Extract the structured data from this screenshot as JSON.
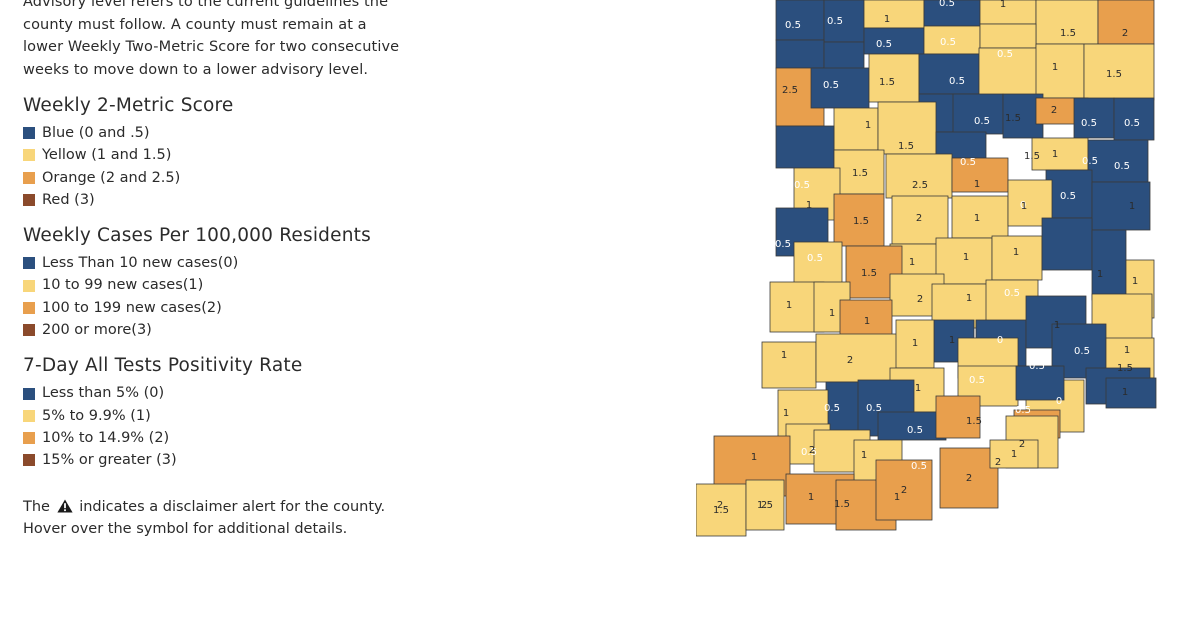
{
  "legend": {
    "intro_lines": [
      "Advisory level refers to the current guidelines the",
      "county must follow. A county must remain at a",
      "lower Weekly Two-Metric Score for two consecutive",
      "weeks to move down to a lower advisory level."
    ],
    "sections": [
      {
        "title": "Weekly 2-Metric Score",
        "items": [
          {
            "label": "Blue (0 and .5)",
            "color": "#2b4f7e"
          },
          {
            "label": "Yellow (1 and 1.5)",
            "color": "#f8d67a"
          },
          {
            "label": "Orange (2 and 2.5)",
            "color": "#e89f4d"
          },
          {
            "label": "Red (3)",
            "color": "#8b4a2b"
          }
        ]
      },
      {
        "title": "Weekly Cases Per 100,000 Residents",
        "items": [
          {
            "label": "Less Than 10 new cases(0)",
            "color": "#2b4f7e"
          },
          {
            "label": "10 to 99 new cases(1)",
            "color": "#f8d67a"
          },
          {
            "label": "100 to 199 new cases(2)",
            "color": "#e89f4d"
          },
          {
            "label": "200 or more(3)",
            "color": "#8b4a2b"
          }
        ]
      },
      {
        "title": "7-Day All Tests Positivity Rate",
        "items": [
          {
            "label": "Less than 5% (0)",
            "color": "#2b4f7e"
          },
          {
            "label": "5% to 9.9% (1)",
            "color": "#f8d67a"
          },
          {
            "label": "10% to 14.9% (2)",
            "color": "#e89f4d"
          },
          {
            "label": "15% or greater (3)",
            "color": "#8b4a2b"
          }
        ]
      }
    ],
    "note_before": "The",
    "note_after": "indicates a disclaimer alert for the county.",
    "note_line2": "Hover over the symbol for additional details.",
    "warning_icon": "warning-triangle-icon"
  },
  "map": {
    "colors": {
      "blue": "#2b4f7e",
      "yellow": "#f8d67a",
      "orange": "#e89f4d",
      "red": "#8b4a2b",
      "border": "#3a3a3a"
    },
    "counties": [
      {
        "score": "0.5"
      },
      {
        "score": "0.5"
      },
      {
        "score": "1"
      },
      {
        "score": "0.5"
      },
      {
        "score": "1"
      },
      {
        "score": "1.5"
      },
      {
        "score": "2"
      },
      {
        "score": "0.5"
      },
      {
        "score": "0.5"
      },
      {
        "score": "0.5"
      },
      {
        "score": "1"
      },
      {
        "score": "1.5"
      },
      {
        "score": "2.5"
      },
      {
        "score": "0.5"
      },
      {
        "score": "1.5"
      },
      {
        "score": "0.5"
      },
      {
        "score": "1.5"
      },
      {
        "score": "1.5"
      },
      {
        "score": "1"
      },
      {
        "score": "0.5"
      },
      {
        "score": "0.5"
      },
      {
        "score": "0.5"
      },
      {
        "score": "2"
      },
      {
        "score": "0.5"
      },
      {
        "score": "0.5"
      },
      {
        "score": "1"
      },
      {
        "score": "1.5"
      },
      {
        "score": "0.5"
      },
      {
        "score": "1"
      },
      {
        "score": "0"
      },
      {
        "score": "0.5"
      },
      {
        "score": "1"
      },
      {
        "score": "1.5"
      },
      {
        "score": "2.5"
      },
      {
        "score": "0.5"
      },
      {
        "score": "1.5"
      },
      {
        "score": "2"
      },
      {
        "score": "1"
      },
      {
        "score": "1"
      },
      {
        "score": "1"
      },
      {
        "score": "0.5"
      },
      {
        "score": "0.5"
      },
      {
        "score": "1"
      },
      {
        "score": "1"
      },
      {
        "score": "1"
      },
      {
        "score": "1.5"
      },
      {
        "score": "2"
      },
      {
        "score": "1"
      },
      {
        "score": "0.5"
      },
      {
        "score": "1"
      },
      {
        "score": "1"
      },
      {
        "score": "1"
      },
      {
        "score": "1"
      },
      {
        "score": "0"
      },
      {
        "score": "1"
      },
      {
        "score": "1"
      },
      {
        "score": "1"
      },
      {
        "score": "2"
      },
      {
        "score": "1"
      },
      {
        "score": "1"
      },
      {
        "score": "0.5"
      },
      {
        "score": "0.5"
      },
      {
        "score": "0.5"
      },
      {
        "score": "1"
      },
      {
        "score": "1"
      },
      {
        "score": "0.5"
      },
      {
        "score": "1.5"
      },
      {
        "score": "1"
      },
      {
        "score": "0.5"
      },
      {
        "score": "0.5"
      },
      {
        "score": "1.5"
      },
      {
        "score": "0.5"
      },
      {
        "score": "0"
      },
      {
        "score": "1"
      },
      {
        "score": "0.5"
      },
      {
        "score": "1"
      },
      {
        "score": "0.5"
      },
      {
        "score": "2"
      },
      {
        "score": "2"
      },
      {
        "score": "1"
      },
      {
        "score": "1"
      },
      {
        "score": "1.5"
      },
      {
        "score": "1"
      },
      {
        "score": "2"
      },
      {
        "score": "2"
      },
      {
        "score": "2"
      },
      {
        "score": "2"
      },
      {
        "score": "2"
      },
      {
        "score": "1.5"
      },
      {
        "score": "1.5"
      },
      {
        "score": "1"
      }
    ]
  }
}
